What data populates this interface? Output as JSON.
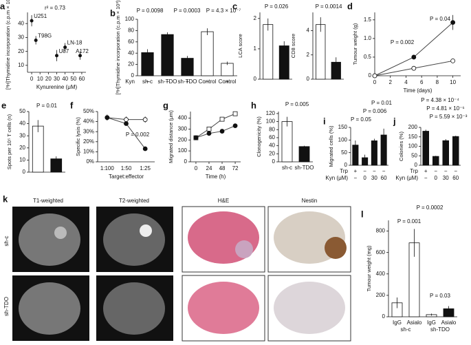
{
  "chart_data": [
    {
      "type": "scatter",
      "panel": "a",
      "ylabel": "[³H]Thymidine incorporation (c.p.m × 10³)",
      "xlabel": "Kynurenine (μM)",
      "x": [
        0,
        5,
        30,
        40,
        58
      ],
      "values": [
        42,
        28,
        17,
        23,
        17
      ],
      "errors": [
        4,
        3,
        4,
        3,
        3
      ],
      "point_labels": [
        "U251",
        "T98G",
        "U87",
        "LN-18",
        "A172"
      ],
      "xlim": [
        -5,
        65
      ],
      "xticks": [
        0,
        10,
        20,
        30,
        40,
        50,
        60
      ],
      "ylim": [
        5,
        48
      ],
      "yticks": [
        10,
        20,
        30,
        40
      ],
      "annotations": [
        "r² = 0.73"
      ]
    },
    {
      "type": "bar",
      "panel": "b",
      "ylabel": "[³H]Thymidine incorporation (c.p.m × 10³)",
      "categories": [
        "sh-c",
        "sh-TDO",
        "sh-TDO",
        "Control",
        "Control"
      ],
      "values": [
        41,
        73,
        31,
        78,
        22
      ],
      "errors": [
        6,
        4,
        4,
        6,
        3
      ],
      "colors": [
        "#111111",
        "#111111",
        "#111111",
        "#ffffff",
        "#ffffff"
      ],
      "rows": [
        {
          "name": "Kyn",
          "labels": [
            "−",
            "−",
            "+",
            "−",
            "+"
          ]
        }
      ],
      "ylim": [
        0,
        100
      ],
      "yticks": [
        0,
        20,
        40,
        60,
        80,
        100
      ],
      "annotations": [
        "P = 0.0098",
        "P = 0.0003",
        "P = 4.3 × 10⁻⁷"
      ]
    },
    {
      "type": "bar",
      "panel": "c",
      "ylabel": "LCA score",
      "values": [
        1.8,
        1.1
      ],
      "errors": [
        0.2,
        0.15
      ],
      "colors": [
        "#ffffff",
        "#111111"
      ],
      "ylim": [
        0,
        2.2
      ],
      "yticks": [
        0,
        1,
        2
      ],
      "annotations": [
        "P = 0.026"
      ]
    },
    {
      "type": "bar",
      "ylabel": "CD8 score",
      "values": [
        4.5,
        1.4
      ],
      "errors": [
        0.6,
        0.4
      ],
      "colors": [
        "#ffffff",
        "#111111"
      ],
      "ylim": [
        0,
        5.5
      ],
      "yticks": [
        0,
        2,
        4
      ],
      "annotations": [
        "P = 0.0014"
      ]
    },
    {
      "type": "line",
      "panel": "d",
      "ylabel": "Tumour weight (g)",
      "xlabel": "Time (days)",
      "x": [
        0,
        5,
        10
      ],
      "series": [
        {
          "marker": "circle",
          "color": "#111111",
          "values": [
            0,
            0.5,
            1.43
          ],
          "errors": [
            0,
            0.05,
            0.2
          ]
        },
        {
          "marker": "circle",
          "color": "#ffffff",
          "values": [
            0,
            0.2,
            0.4
          ],
          "errors": [
            0,
            0.03,
            0.06
          ]
        }
      ],
      "xlim": [
        0,
        11
      ],
      "xticks": [
        0,
        2,
        4,
        6,
        8,
        10
      ],
      "ylim": [
        0,
        1.7
      ],
      "yticks": [
        0,
        0.5,
        {
          "value": 1,
          "label": "1.0"
        },
        1.5
      ],
      "annotations": [
        "P = 0.002",
        "P = 0.04"
      ]
    },
    {
      "type": "bar",
      "panel": "e",
      "ylabel": "Spots per 10⁵ T cells (n)",
      "values": [
        38,
        11
      ],
      "errors": [
        5,
        2
      ],
      "colors": [
        "#ffffff",
        "#111111"
      ],
      "ylim": [
        0,
        50
      ],
      "yticks": [
        0,
        10,
        20,
        30,
        40,
        50
      ],
      "annotations": [
        "P = 0.01"
      ]
    },
    {
      "type": "line",
      "panel": "f",
      "ylabel": "Specific lysis (%)",
      "xlabel": "Target:effector",
      "categories": [
        "1:100",
        "1:50",
        "1:25"
      ],
      "series": [
        {
          "marker": "circle",
          "color": "#ffffff",
          "values": [
            44,
            42,
            42
          ],
          "errors": [
            3,
            3,
            3
          ]
        },
        {
          "marker": "circle",
          "color": "#111111",
          "values": [
            44,
            38,
            13
          ],
          "errors": [
            2,
            2,
            1
          ]
        }
      ],
      "ylim": [
        0,
        50
      ],
      "yticks": [
        {
          "value": 0,
          "label": "0%"
        },
        {
          "value": 10,
          "label": "10%"
        },
        {
          "value": 20,
          "label": "20%"
        },
        {
          "value": 30,
          "label": "30%"
        },
        {
          "value": 40,
          "label": "40%"
        },
        {
          "value": 50,
          "label": "50%"
        }
      ],
      "annotations": [
        "P = 0.002"
      ]
    },
    {
      "type": "line",
      "panel": "g",
      "ylabel": "Migrated distance (μm)",
      "xlabel": "Time (h)",
      "x": [
        0,
        24,
        48,
        72
      ],
      "series": [
        {
          "marker": "square",
          "color": "#ffffff",
          "values": [
            220,
            300,
            390,
            440
          ],
          "errors": [
            10,
            10,
            15,
            20
          ]
        },
        {
          "marker": "circle",
          "color": "#111111",
          "values": [
            220,
            260,
            280,
            330
          ],
          "errors": [
            10,
            10,
            10,
            10
          ]
        }
      ],
      "xlim": [
        -10,
        82
      ],
      "xticks": [
        0,
        24,
        48,
        72
      ],
      "ylim": [
        0,
        460
      ],
      "yticks": [
        0,
        100,
        200,
        300,
        400
      ]
    },
    {
      "type": "bar",
      "panel": "h",
      "ylabel": "Clonogenicity (%)",
      "categories": [
        "sh-c",
        "sh-TDO"
      ],
      "values": [
        100,
        38
      ],
      "errors": [
        12,
        2
      ],
      "colors": [
        "#ffffff",
        "#111111"
      ],
      "ylim": [
        0,
        125
      ],
      "yticks": [
        0,
        20,
        40,
        60,
        80,
        100,
        120
      ],
      "annotations": [
        "P = 0.005"
      ]
    },
    {
      "type": "bar",
      "panel": "i",
      "ylabel": "Migrated cells (%)",
      "values": [
        80,
        30,
        97,
        120
      ],
      "errors": [
        18,
        12,
        8,
        25
      ],
      "colors": [
        "#111111",
        "#111111",
        "#111111",
        "#111111"
      ],
      "rows": [
        {
          "name": "Trp",
          "labels": [
            "+",
            "−",
            "−",
            "−"
          ]
        },
        {
          "name": "Kyn (μM)",
          "labels": [
            "−",
            "0",
            "30",
            "60"
          ]
        }
      ],
      "ylim": [
        0,
        150
      ],
      "yticks": [
        0,
        50,
        100,
        150
      ],
      "annotations": [
        "P = 0.01",
        "P = 0.006",
        "P = 0.05"
      ]
    },
    {
      "type": "bar",
      "panel": "j",
      "ylabel": "Colonies (%)",
      "values": [
        180,
        47,
        130,
        152
      ],
      "errors": [
        8,
        3,
        8,
        4
      ],
      "colors": [
        "#111111",
        "#111111",
        "#111111",
        "#111111"
      ],
      "rows": [
        {
          "name": "Trp",
          "labels": [
            "+",
            "−",
            "−",
            "−"
          ]
        },
        {
          "name": "Kyn (μM)",
          "labels": [
            "−",
            "0",
            "30",
            "60"
          ]
        }
      ],
      "ylim": [
        0,
        200
      ],
      "yticks": [
        0,
        50,
        100,
        150,
        200
      ],
      "annotations": [
        "P = 4.38 × 10⁻⁴",
        "P = 4.81 × 10⁻⁶",
        "P = 5.59 × 10⁻³"
      ]
    },
    {
      "type": "bar",
      "panel": "l",
      "ylabel": "Tumour weight (mg)",
      "categories": [
        "IgG",
        "Asialo",
        "IgG",
        "Asialo"
      ],
      "groups": [
        "sh-c",
        "sh-TDO"
      ],
      "values": [
        130,
        690,
        20,
        75
      ],
      "errors": [
        50,
        130,
        10,
        25
      ],
      "colors": [
        "#ffffff",
        "#ffffff",
        "#ffffff",
        "#111111"
      ],
      "ylim": [
        0,
        900
      ],
      "yticks": [
        0,
        200,
        400,
        600,
        800
      ],
      "annotations": [
        "P = 0.0002",
        "P = 0.001",
        "P = 0.03"
      ]
    }
  ],
  "image_panel": {
    "label": "k",
    "columns": [
      "T1-weighted",
      "T2-weighted",
      "H&E",
      "Nestin"
    ],
    "rows": [
      "sh-c",
      "sh-TDO"
    ]
  }
}
